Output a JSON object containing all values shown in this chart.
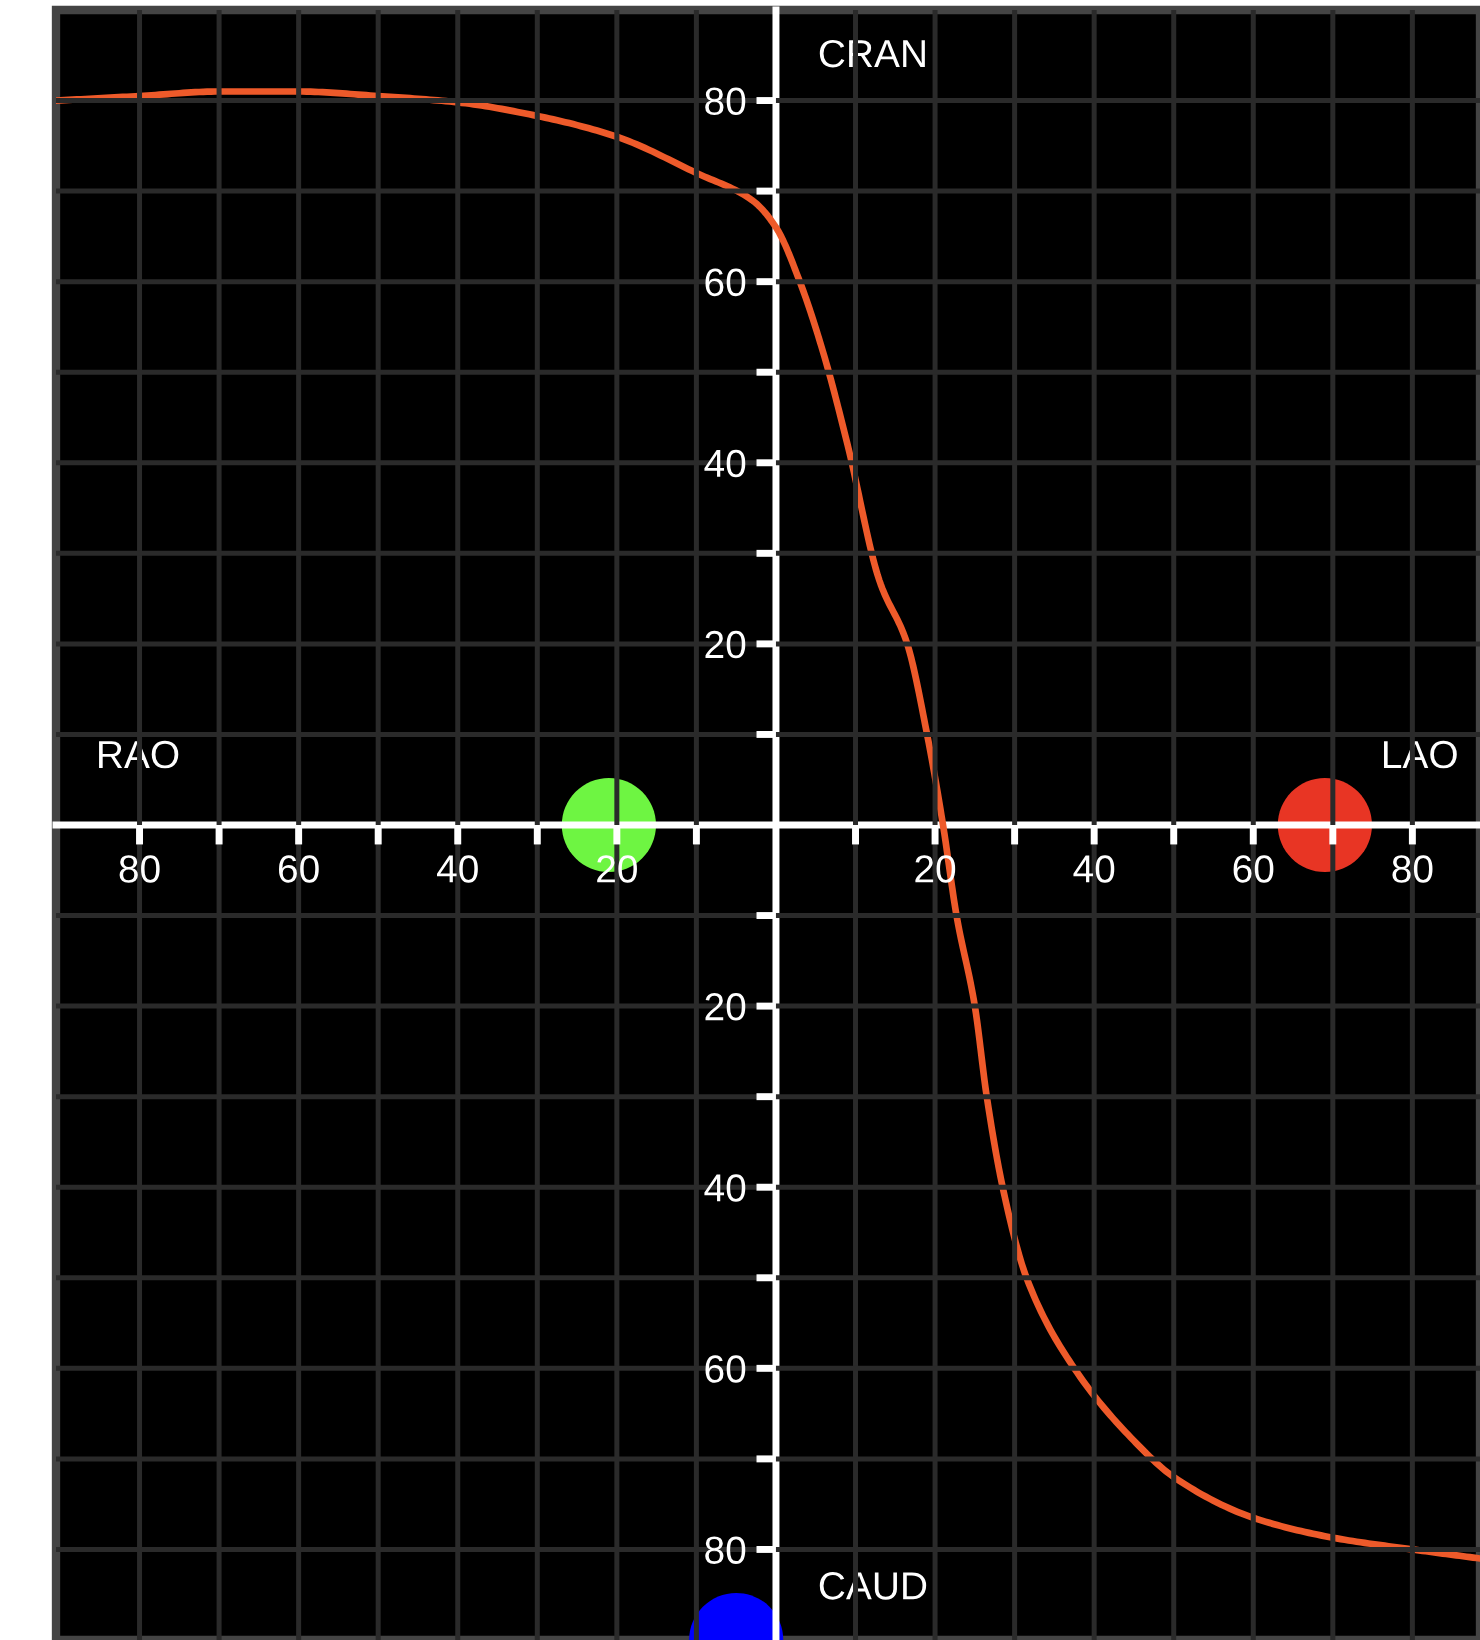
{
  "chart_data": {
    "type": "scatter",
    "xlim": [
      -90.5,
      88.5
    ],
    "ylim": [
      -90,
      90
    ],
    "xticks": [
      {
        "value": -80,
        "label": "80"
      },
      {
        "value": -70,
        "label": null
      },
      {
        "value": -60,
        "label": "60"
      },
      {
        "value": -50,
        "label": null
      },
      {
        "value": -40,
        "label": "40"
      },
      {
        "value": -30,
        "label": null
      },
      {
        "value": -20,
        "label": "20"
      },
      {
        "value": -10,
        "label": null
      },
      {
        "value": 10,
        "label": null
      },
      20,
      {
        "value": 30,
        "label": null
      },
      40,
      {
        "value": 50,
        "label": null
      },
      60,
      {
        "value": 70,
        "label": null
      },
      80
    ],
    "yticks": [
      {
        "value": -80,
        "label": "80"
      },
      {
        "value": -70,
        "label": null
      },
      {
        "value": -60,
        "label": "60"
      },
      {
        "value": -50,
        "label": null
      },
      {
        "value": -40,
        "label": "40"
      },
      {
        "value": -30,
        "label": null
      },
      {
        "value": -20,
        "label": "20"
      },
      {
        "value": -10,
        "label": null
      },
      {
        "value": 10,
        "label": null
      },
      20,
      {
        "value": 30,
        "label": null
      },
      40,
      {
        "value": 50,
        "label": null
      },
      60,
      {
        "value": 70,
        "label": null
      },
      80
    ],
    "grid": true,
    "marker": "circle",
    "series": [
      {
        "type": "line",
        "color": "#ee5a2a",
        "marker": "none",
        "line_style": "solid",
        "x": [
          -90.5,
          -80,
          -70,
          -60,
          -50,
          -40,
          -30,
          -20,
          -10,
          -3,
          0,
          3,
          6,
          9,
          13,
          16.5,
          19,
          21,
          22.7,
          25,
          26.5,
          28.5,
          31.5,
          37.5,
          45,
          50,
          60,
          70,
          80,
          88.5
        ],
        "values": [
          80,
          80.5,
          81,
          81,
          80.5,
          79.8,
          78.3,
          76,
          72,
          69,
          66,
          60,
          52,
          42,
          27,
          20,
          10,
          0,
          -10,
          -20,
          -30,
          -40,
          -50,
          -60,
          -68,
          -72,
          -76.5,
          -78.7,
          -80,
          -81
        ]
      },
      {
        "color": "#6ef542",
        "x": [
          -21
        ],
        "values": [
          0
        ]
      },
      {
        "color": "#e83524",
        "x": [
          69
        ],
        "values": [
          0
        ]
      },
      {
        "color": "#0000ff",
        "x": [
          -5
        ],
        "values": [
          -90
        ]
      }
    ],
    "annotations": [
      "RAO",
      "LAO",
      "CRAN",
      "CAUD"
    ]
  }
}
